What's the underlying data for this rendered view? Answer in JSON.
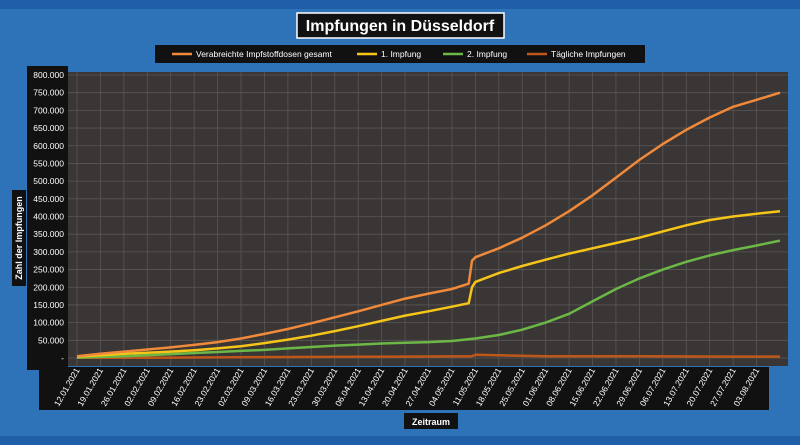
{
  "chart_data": {
    "type": "line",
    "title": "Impfungen in Düsseldorf",
    "xlabel": "Zeitraum",
    "ylabel": "Zahl der Impfungen",
    "legend_position": "top",
    "ylim": [
      0,
      800000
    ],
    "y_ticks": [
      "-",
      "50.000",
      "100.000",
      "150.000",
      "200.000",
      "250.000",
      "300.000",
      "350.000",
      "400.000",
      "450.000",
      "500.000",
      "550.000",
      "600.000",
      "650.000",
      "700.000",
      "750.000",
      "800.000"
    ],
    "x_range": [
      "2021-01-12",
      "2021-08-10"
    ],
    "x_ticks": [
      "12.01.2021",
      "19.01.2021",
      "26.01.2021",
      "02.02.2021",
      "09.02.2021",
      "16.02.2021",
      "23.02.2021",
      "02.03.2021",
      "09.03.2021",
      "16.03.2021",
      "23.03.2021",
      "30.03.2021",
      "06.04.2021",
      "13.04.2021",
      "20.04.2021",
      "27.04.2021",
      "04.05.2021",
      "11.05.2021",
      "18.05.2021",
      "25.05.2021",
      "01.06.2021",
      "08.06.2021",
      "15.06.2021",
      "22.06.2021",
      "29.06.2021",
      "06.07.2021",
      "13.07.2021",
      "20.07.2021",
      "27.07.2021",
      "03.08.2021"
    ],
    "series": [
      {
        "name": "Verabreichte Impfstoffdosen gesamt",
        "color": "#f08a3a",
        "x": [
          "2021-01-12",
          "2021-01-19",
          "2021-01-26",
          "2021-02-02",
          "2021-02-09",
          "2021-02-16",
          "2021-02-23",
          "2021-03-02",
          "2021-03-09",
          "2021-03-16",
          "2021-03-23",
          "2021-03-30",
          "2021-04-06",
          "2021-04-13",
          "2021-04-20",
          "2021-04-27",
          "2021-05-04",
          "2021-05-09",
          "2021-05-10",
          "2021-05-11",
          "2021-05-18",
          "2021-05-25",
          "2021-06-01",
          "2021-06-08",
          "2021-06-15",
          "2021-06-22",
          "2021-06-29",
          "2021-07-06",
          "2021-07-13",
          "2021-07-20",
          "2021-07-27",
          "2021-08-03",
          "2021-08-10"
        ],
        "y": [
          5000,
          12000,
          18000,
          24000,
          30000,
          37000,
          45000,
          55000,
          68000,
          82000,
          98000,
          115000,
          132000,
          150000,
          168000,
          182000,
          195000,
          210000,
          275000,
          285000,
          310000,
          340000,
          375000,
          415000,
          460000,
          510000,
          560000,
          605000,
          645000,
          680000,
          710000,
          730000,
          750000
        ]
      },
      {
        "name": "1. Impfung",
        "color": "#f5c518",
        "x": [
          "2021-01-12",
          "2021-01-19",
          "2021-01-26",
          "2021-02-02",
          "2021-02-09",
          "2021-02-16",
          "2021-02-23",
          "2021-03-02",
          "2021-03-09",
          "2021-03-16",
          "2021-03-23",
          "2021-03-30",
          "2021-04-06",
          "2021-04-13",
          "2021-04-20",
          "2021-04-27",
          "2021-05-04",
          "2021-05-09",
          "2021-05-10",
          "2021-05-11",
          "2021-05-18",
          "2021-05-25",
          "2021-06-01",
          "2021-06-08",
          "2021-06-15",
          "2021-06-22",
          "2021-06-29",
          "2021-07-06",
          "2021-07-13",
          "2021-07-20",
          "2021-07-27",
          "2021-08-03",
          "2021-08-10"
        ],
        "y": [
          4000,
          8000,
          12000,
          15000,
          18000,
          22000,
          27000,
          33000,
          42000,
          52000,
          63000,
          76000,
          90000,
          105000,
          120000,
          132000,
          145000,
          155000,
          200000,
          215000,
          240000,
          260000,
          278000,
          295000,
          310000,
          325000,
          340000,
          358000,
          375000,
          390000,
          400000,
          408000,
          415000
        ]
      },
      {
        "name": "2. Impfung",
        "color": "#6cb846",
        "x": [
          "2021-01-12",
          "2021-01-19",
          "2021-01-26",
          "2021-02-02",
          "2021-02-09",
          "2021-02-16",
          "2021-02-23",
          "2021-03-02",
          "2021-03-09",
          "2021-03-16",
          "2021-03-23",
          "2021-03-30",
          "2021-04-06",
          "2021-04-13",
          "2021-04-20",
          "2021-04-27",
          "2021-05-04",
          "2021-05-11",
          "2021-05-18",
          "2021-05-25",
          "2021-06-01",
          "2021-06-08",
          "2021-06-15",
          "2021-06-22",
          "2021-06-29",
          "2021-07-06",
          "2021-07-13",
          "2021-07-20",
          "2021-07-27",
          "2021-08-03",
          "2021-08-10"
        ],
        "y": [
          1000,
          3000,
          5000,
          8000,
          11000,
          14000,
          17000,
          20000,
          23000,
          27000,
          31000,
          35000,
          38000,
          41000,
          43000,
          45000,
          48000,
          55000,
          65000,
          80000,
          100000,
          125000,
          160000,
          195000,
          225000,
          250000,
          272000,
          290000,
          305000,
          318000,
          332000
        ]
      },
      {
        "name": "Tägliche Impfungen",
        "color": "#c0571a",
        "x": [
          "2021-01-12",
          "2021-02-09",
          "2021-03-09",
          "2021-04-06",
          "2021-05-04",
          "2021-05-10",
          "2021-05-11",
          "2021-06-01",
          "2021-06-29",
          "2021-07-27",
          "2021-08-10"
        ],
        "y": [
          500,
          1200,
          2500,
          3500,
          4500,
          5000,
          9000,
          5000,
          5000,
          4000,
          4000
        ]
      }
    ]
  }
}
